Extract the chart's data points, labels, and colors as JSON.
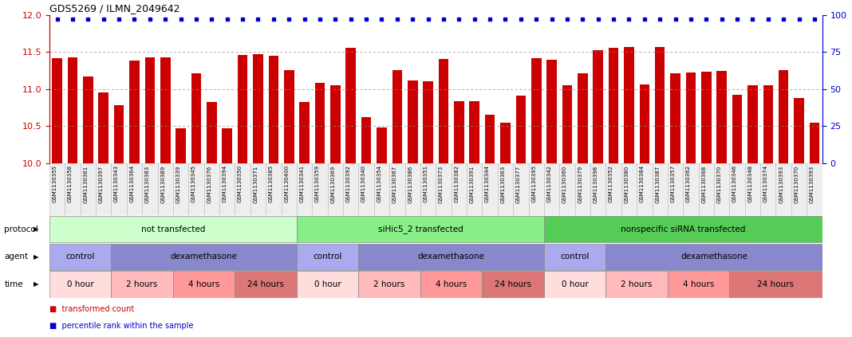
{
  "title": "GDS5269 / ILMN_2049642",
  "bar_values": [
    11.42,
    11.43,
    11.17,
    10.95,
    10.78,
    11.38,
    11.43,
    11.43,
    10.47,
    11.21,
    10.82,
    10.47,
    11.46,
    11.47,
    11.45,
    11.25,
    10.82,
    11.08,
    11.05,
    11.55,
    10.62,
    10.48,
    11.25,
    11.12,
    11.1,
    11.4,
    10.83,
    10.83,
    10.65,
    10.55,
    10.91,
    11.42,
    11.39,
    11.05,
    11.21,
    11.52,
    11.55,
    11.57,
    11.06,
    11.57,
    11.21,
    11.22,
    11.23,
    11.24,
    10.92,
    11.05,
    11.05,
    11.25,
    10.88,
    10.55
  ],
  "percentile_values": [
    97,
    97,
    97,
    97,
    97,
    97,
    97,
    97,
    97,
    97,
    97,
    97,
    97,
    97,
    97,
    97,
    97,
    97,
    97,
    97,
    97,
    97,
    97,
    97,
    97,
    97,
    97,
    97,
    97,
    97,
    97,
    97,
    97,
    97,
    97,
    97,
    97,
    97,
    97,
    97,
    97,
    97,
    97,
    97,
    97,
    97,
    97,
    97,
    97,
    97
  ],
  "sample_ids": [
    "GSM1130355",
    "GSM1130358",
    "GSM1130361",
    "GSM1130397",
    "GSM1130343",
    "GSM1130364",
    "GSM1130383",
    "GSM1130389",
    "GSM1130339",
    "GSM1130345",
    "GSM1130376",
    "GSM1130394",
    "GSM1130350",
    "GSM1130371",
    "GSM1130385",
    "GSM1130400",
    "GSM1130341",
    "GSM1130359",
    "GSM1130369",
    "GSM1130392",
    "GSM1130340",
    "GSM1130354",
    "GSM1130367",
    "GSM1130386",
    "GSM1130351",
    "GSM1130373",
    "GSM1130382",
    "GSM1130391",
    "GSM1130344",
    "GSM1130363",
    "GSM1130377",
    "GSM1130395",
    "GSM1130342",
    "GSM1130360",
    "GSM1130379",
    "GSM1130398",
    "GSM1130352",
    "GSM1130380",
    "GSM1130384",
    "GSM1130387",
    "GSM1130357",
    "GSM1130362",
    "GSM1130368",
    "GSM1130370",
    "GSM1130346",
    "GSM1130348",
    "GSM1130374",
    "GSM1130393",
    "GSM1130370",
    "GSM1130393"
  ],
  "ylim_left": [
    10.0,
    12.0
  ],
  "ylim_right": [
    0,
    100
  ],
  "yticks_left": [
    10.0,
    10.5,
    11.0,
    11.5,
    12.0
  ],
  "yticks_right": [
    0,
    25,
    50,
    75,
    100
  ],
  "bar_color": "#cc0000",
  "dot_color": "#0000cc",
  "protocol_groups": [
    {
      "label": "not transfected",
      "start": 0,
      "end": 16,
      "color": "#ccffcc"
    },
    {
      "label": "siHic5_2 transfected",
      "start": 16,
      "end": 32,
      "color": "#88ee88"
    },
    {
      "label": "nonspecific siRNA transfected",
      "start": 32,
      "end": 50,
      "color": "#55cc55"
    }
  ],
  "agent_groups": [
    {
      "label": "control",
      "start": 0,
      "end": 4,
      "color": "#aaaaee"
    },
    {
      "label": "dexamethasone",
      "start": 4,
      "end": 16,
      "color": "#8888cc"
    },
    {
      "label": "control",
      "start": 16,
      "end": 20,
      "color": "#aaaaee"
    },
    {
      "label": "dexamethasone",
      "start": 20,
      "end": 32,
      "color": "#8888cc"
    },
    {
      "label": "control",
      "start": 32,
      "end": 36,
      "color": "#aaaaee"
    },
    {
      "label": "dexamethasone",
      "start": 36,
      "end": 50,
      "color": "#8888cc"
    }
  ],
  "time_groups": [
    {
      "label": "0 hour",
      "start": 0,
      "end": 4,
      "color": "#ffdddd"
    },
    {
      "label": "2 hours",
      "start": 4,
      "end": 8,
      "color": "#ffbbbb"
    },
    {
      "label": "4 hours",
      "start": 8,
      "end": 12,
      "color": "#ff9999"
    },
    {
      "label": "24 hours",
      "start": 12,
      "end": 16,
      "color": "#dd7777"
    },
    {
      "label": "0 hour",
      "start": 16,
      "end": 20,
      "color": "#ffdddd"
    },
    {
      "label": "2 hours",
      "start": 20,
      "end": 24,
      "color": "#ffbbbb"
    },
    {
      "label": "4 hours",
      "start": 24,
      "end": 28,
      "color": "#ff9999"
    },
    {
      "label": "24 hours",
      "start": 28,
      "end": 32,
      "color": "#dd7777"
    },
    {
      "label": "0 hour",
      "start": 32,
      "end": 36,
      "color": "#ffdddd"
    },
    {
      "label": "2 hours",
      "start": 36,
      "end": 40,
      "color": "#ffbbbb"
    },
    {
      "label": "4 hours",
      "start": 40,
      "end": 44,
      "color": "#ff9999"
    },
    {
      "label": "24 hours",
      "start": 44,
      "end": 50,
      "color": "#dd7777"
    }
  ],
  "n_bars": 50,
  "row_labels": [
    "protocol",
    "agent",
    "time"
  ],
  "legend_items": [
    {
      "label": "transformed count",
      "color": "#cc0000"
    },
    {
      "label": "percentile rank within the sample",
      "color": "#0000cc"
    }
  ]
}
